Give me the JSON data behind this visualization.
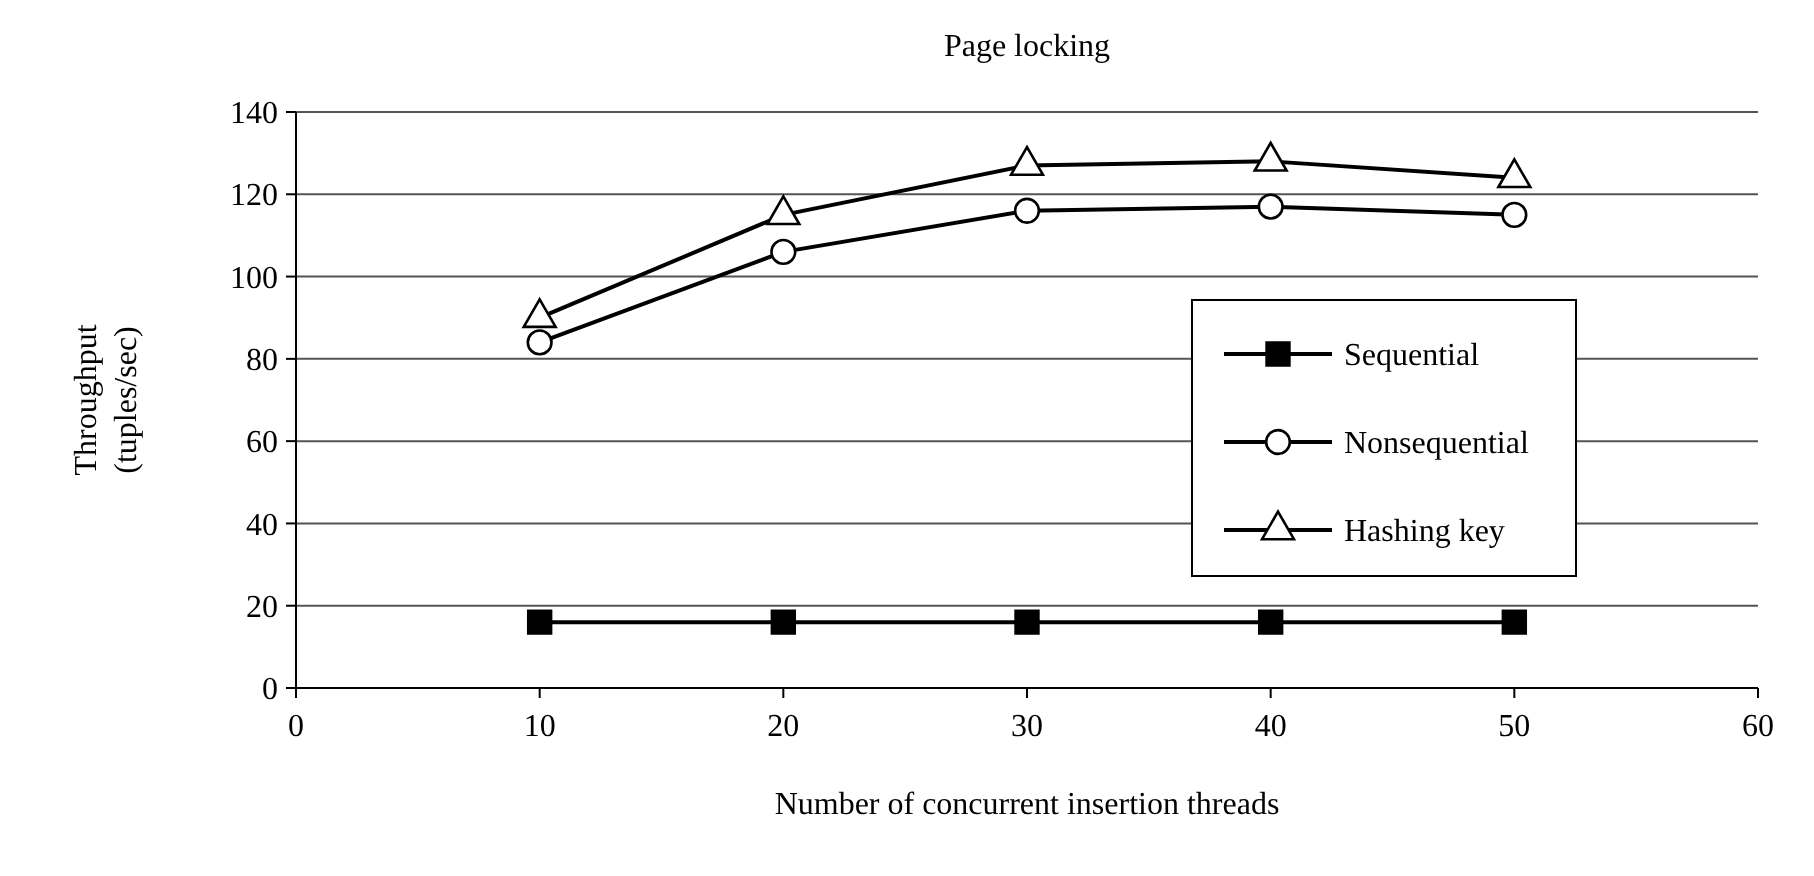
{
  "chart_data": {
    "type": "line",
    "title": "Page locking",
    "xlabel": "Number of concurrent insertion threads",
    "ylabel": "Throughput\n(tuples/sec)",
    "x": [
      10,
      20,
      30,
      40,
      50
    ],
    "series": [
      {
        "name": "Sequential",
        "color": "#000000",
        "marker": "square",
        "values": [
          16,
          16,
          16,
          16,
          16
        ]
      },
      {
        "name": "Nonsequential",
        "color": "#000000",
        "marker": "circle",
        "values": [
          84,
          106,
          116,
          117,
          115
        ]
      },
      {
        "name": "Hashing key",
        "color": "#000000",
        "marker": "triangle",
        "values": [
          90,
          115,
          127,
          128,
          124
        ]
      }
    ],
    "xlim": [
      0,
      60
    ],
    "xticks": [
      0,
      10,
      20,
      30,
      40,
      50,
      60
    ],
    "ylim": [
      0,
      140
    ],
    "yticks": [
      0,
      20,
      40,
      60,
      80,
      100,
      120,
      140
    ],
    "grid": "y",
    "legend": "right",
    "line_style": "solid"
  }
}
